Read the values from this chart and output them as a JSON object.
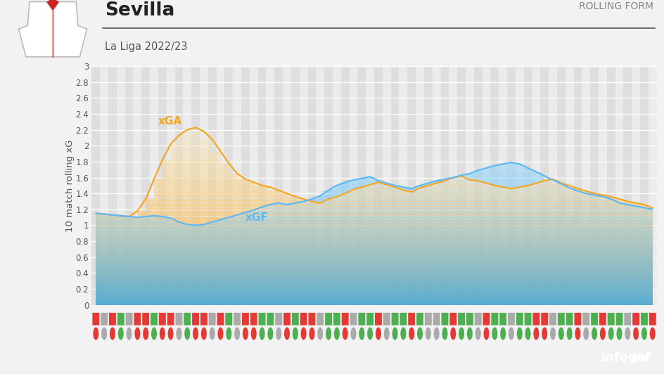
{
  "title": "Sevilla",
  "subtitle": "La Liga 2022/23",
  "rolling_form_label": "ROLLING FORM",
  "ylabel": "10 match rolling xG",
  "ylim": [
    0,
    3.0
  ],
  "yticks": [
    0,
    0.2,
    0.4,
    0.6,
    0.8,
    1.0,
    1.2,
    1.4,
    1.6,
    1.8,
    2.0,
    2.2,
    2.4,
    2.6,
    2.8,
    3.0
  ],
  "bg_color": "#f2f2f2",
  "plot_bg_light": "#ebebeb",
  "plot_bg_dark": "#dedede",
  "grid_color": "#ffffff",
  "xgf_line_color": "#5db8f5",
  "xgf_fill_top": "#5db8f5",
  "xgf_fill_bot": "#c8e8fb",
  "xga_line_color": "#f5a623",
  "xga_fill_top": "#f5a623",
  "xga_fill_bot": "#fde3a7",
  "footer_color": "#1e2760",
  "xgf_label": "xGF",
  "xga_label": "xGA",
  "xgf": [
    1.15,
    1.14,
    1.13,
    1.12,
    1.11,
    1.1,
    1.11,
    1.12,
    1.11,
    1.09,
    1.04,
    1.01,
    1.0,
    1.01,
    1.04,
    1.07,
    1.1,
    1.13,
    1.16,
    1.19,
    1.23,
    1.26,
    1.28,
    1.26,
    1.28,
    1.3,
    1.33,
    1.37,
    1.44,
    1.5,
    1.54,
    1.57,
    1.59,
    1.61,
    1.56,
    1.53,
    1.5,
    1.48,
    1.46,
    1.5,
    1.53,
    1.56,
    1.58,
    1.6,
    1.63,
    1.65,
    1.69,
    1.72,
    1.75,
    1.77,
    1.79,
    1.77,
    1.72,
    1.67,
    1.62,
    1.57,
    1.52,
    1.47,
    1.43,
    1.4,
    1.38,
    1.36,
    1.33,
    1.28,
    1.26,
    1.24,
    1.22,
    1.2
  ],
  "xga": [
    1.15,
    1.14,
    1.13,
    1.12,
    1.11,
    1.18,
    1.33,
    1.58,
    1.82,
    2.02,
    2.13,
    2.2,
    2.23,
    2.18,
    2.08,
    1.93,
    1.78,
    1.65,
    1.58,
    1.54,
    1.5,
    1.48,
    1.44,
    1.4,
    1.36,
    1.33,
    1.3,
    1.28,
    1.33,
    1.36,
    1.4,
    1.45,
    1.48,
    1.51,
    1.54,
    1.51,
    1.48,
    1.44,
    1.42,
    1.47,
    1.5,
    1.53,
    1.56,
    1.6,
    1.62,
    1.57,
    1.56,
    1.53,
    1.5,
    1.48,
    1.46,
    1.48,
    1.5,
    1.53,
    1.56,
    1.58,
    1.53,
    1.5,
    1.46,
    1.43,
    1.4,
    1.38,
    1.36,
    1.33,
    1.3,
    1.28,
    1.26,
    1.22
  ],
  "results_top": [
    "L",
    "D",
    "L",
    "W",
    "D",
    "L",
    "L",
    "W",
    "L",
    "L",
    "D",
    "W",
    "L",
    "L",
    "D",
    "L",
    "W",
    "D",
    "L",
    "L",
    "W",
    "W",
    "D",
    "L",
    "W",
    "L",
    "L",
    "D",
    "W",
    "W",
    "L",
    "D",
    "W",
    "W",
    "L",
    "D",
    "W",
    "W",
    "L",
    "W",
    "D",
    "D",
    "W",
    "L",
    "W",
    "W",
    "D",
    "L",
    "W",
    "W",
    "D",
    "W",
    "W",
    "L",
    "L",
    "D",
    "W",
    "W",
    "L",
    "D",
    "W",
    "L",
    "W",
    "W",
    "D",
    "L",
    "W",
    "L"
  ],
  "results_bot": [
    "L",
    "D",
    "L",
    "W",
    "D",
    "L",
    "L",
    "W",
    "L",
    "L",
    "D",
    "W",
    "L",
    "L",
    "D",
    "L",
    "W",
    "D",
    "L",
    "L",
    "W",
    "W",
    "D",
    "L",
    "W",
    "L",
    "L",
    "D",
    "W",
    "W",
    "L",
    "D",
    "W",
    "W",
    "L",
    "D",
    "W",
    "W",
    "L",
    "W",
    "D",
    "D",
    "W",
    "L",
    "W",
    "W",
    "D",
    "L",
    "W",
    "W",
    "D",
    "W",
    "W",
    "L",
    "L",
    "D",
    "W",
    "W",
    "L",
    "D",
    "W",
    "L",
    "W",
    "W",
    "D",
    "L",
    "W",
    "L"
  ]
}
